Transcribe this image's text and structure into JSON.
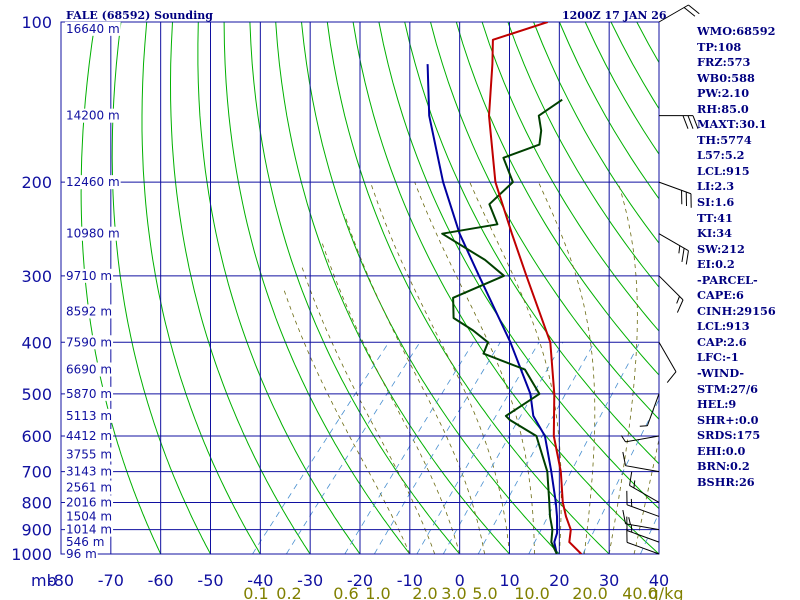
{
  "header": {
    "station": "FALE (68592) Sounding",
    "time": "1200Z 17 JAN 26"
  },
  "indices": [
    "WMO:68592",
    "TP:108",
    "FRZ:573",
    "WB0:588",
    "PW:2.10",
    "RH:85.0",
    "MAXT:30.1",
    "TH:5774",
    "L57:5.2",
    "LCL:915",
    "LI:2.3",
    "SI:1.6",
    "TT:41",
    "KI:34",
    "SW:212",
    "EI:0.2",
    "-PARCEL-",
    "CAPE:6",
    "CINH:29156",
    "LCL:913",
    "CAP:2.6",
    "LFC:-1",
    "-WIND-",
    "STM:27/6",
    "HEL:9",
    "SHR+:0.0",
    "SRDS:175",
    "EHI:0.0",
    "BRN:0.2",
    "BSHR:26"
  ],
  "colors": {
    "background": "#ffffff",
    "grid": "#1010a0",
    "dry_adiabat": "#00b000",
    "moist_adiabat": "#6a6a10",
    "mixing_ratio": "#4a90d0",
    "temperature": "#c00000",
    "dewpoint": "#004000",
    "parcel": "#0000a0",
    "text": "#000080",
    "mixing_label": "#808000"
  },
  "chart_data": {
    "type": "skew-t",
    "xlim": [
      -80,
      40
    ],
    "ylim": [
      1000,
      100
    ],
    "yscale": "log",
    "x_unit_label": "mb",
    "x_ticks": [
      -80,
      -70,
      -60,
      -50,
      -40,
      -30,
      -20,
      -10,
      0,
      10,
      20,
      30,
      40
    ],
    "y_ticks": [
      100,
      200,
      300,
      400,
      500,
      600,
      700,
      800,
      900,
      1000
    ],
    "height_labels": [
      {
        "p": 103,
        "label": "16640 m"
      },
      {
        "p": 150,
        "label": "14200 m"
      },
      {
        "p": 200,
        "label": "12460 m"
      },
      {
        "p": 250,
        "label": "10980 m"
      },
      {
        "p": 300,
        "label": "9710 m"
      },
      {
        "p": 350,
        "label": "8592 m"
      },
      {
        "p": 400,
        "label": "7590 m"
      },
      {
        "p": 450,
        "label": "6690 m"
      },
      {
        "p": 500,
        "label": "5870 m"
      },
      {
        "p": 550,
        "label": "5113 m"
      },
      {
        "p": 600,
        "label": "4412 m"
      },
      {
        "p": 650,
        "label": "3755 m"
      },
      {
        "p": 700,
        "label": "3143 m"
      },
      {
        "p": 750,
        "label": "2561 m"
      },
      {
        "p": 800,
        "label": "2016 m"
      },
      {
        "p": 850,
        "label": "1504 m"
      },
      {
        "p": 900,
        "label": "1014 m"
      },
      {
        "p": 950,
        "label": "546 m"
      },
      {
        "p": 1000,
        "label": "96 m"
      }
    ],
    "mixing_ratio_labels": [
      "0.1",
      "0.2",
      "0.6",
      "1.0",
      "2.0",
      "3.0",
      "5.0",
      "10.0",
      "20.0",
      "40.0",
      "g/kg"
    ],
    "temperature": {
      "p": [
        1000,
        950,
        900,
        850,
        800,
        700,
        600,
        500,
        400,
        300,
        250,
        200,
        150,
        120,
        108,
        100
      ],
      "t": [
        24.4,
        20.0,
        18.2,
        15.0,
        12.0,
        6.4,
        -1.0,
        -8.0,
        -17.5,
        -33.5,
        -43.5,
        -55.5,
        -68.0,
        -76.0,
        -80.0,
        -72.0
      ]
    },
    "dewpoint": {
      "p": [
        1000,
        950,
        900,
        850,
        800,
        700,
        600,
        560,
        550,
        500,
        450,
        420,
        400,
        380,
        360,
        330,
        300,
        280,
        250,
        240,
        220,
        200,
        180,
        170,
        160,
        150,
        140
      ],
      "td": [
        19.5,
        16.4,
        14.5,
        11.8,
        9.3,
        3.7,
        -4.5,
        -12.5,
        -14.0,
        -11.0,
        -18.0,
        -29.0,
        -30.0,
        -35.0,
        -41.0,
        -44.5,
        -38.0,
        -44.5,
        -57.5,
        -48.0,
        -53.0,
        -52.0,
        -58.0,
        -53.0,
        -55.0,
        -58.0,
        -56.0
      ]
    },
    "parcel": {
      "p": [
        1000,
        950,
        913,
        850,
        800,
        700,
        600,
        550,
        500,
        400,
        300,
        250,
        200,
        150,
        120
      ],
      "t": [
        19.5,
        17.0,
        16.0,
        13.2,
        10.6,
        4.5,
        -2.8,
        -8.5,
        -12.8,
        -25.5,
        -43.0,
        -54.0,
        -66.0,
        -80.0,
        -89.0
      ]
    },
    "wind_barbs": [
      {
        "p": 1000,
        "dir": 110,
        "kt": 10
      },
      {
        "p": 950,
        "dir": 110,
        "kt": 15
      },
      {
        "p": 900,
        "dir": 100,
        "kt": 15
      },
      {
        "p": 850,
        "dir": 110,
        "kt": 15
      },
      {
        "p": 800,
        "dir": 120,
        "kt": 15
      },
      {
        "p": 700,
        "dir": 100,
        "kt": 10
      },
      {
        "p": 600,
        "dir": 80,
        "kt": 5
      },
      {
        "p": 500,
        "dir": 20,
        "kt": 5
      },
      {
        "p": 400,
        "dir": 330,
        "kt": 10
      },
      {
        "p": 300,
        "dir": 315,
        "kt": 15
      },
      {
        "p": 250,
        "dir": 300,
        "kt": 25
      },
      {
        "p": 200,
        "dir": 290,
        "kt": 30
      },
      {
        "p": 150,
        "dir": 270,
        "kt": 30
      },
      {
        "p": 100,
        "dir": 240,
        "kt": 20
      }
    ]
  }
}
